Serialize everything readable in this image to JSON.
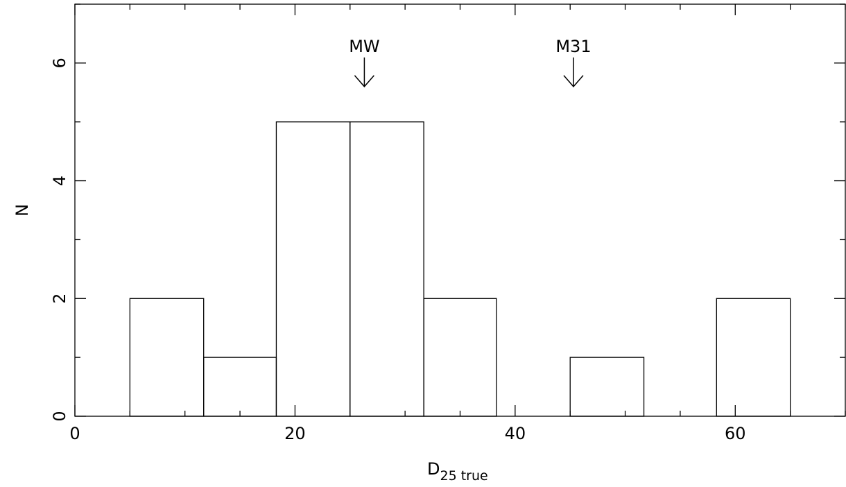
{
  "chart_data": {
    "type": "bar",
    "histogram": true,
    "bins": [
      {
        "from": 5,
        "to": 11.7,
        "count": 2
      },
      {
        "from": 11.7,
        "to": 18.3,
        "count": 1
      },
      {
        "from": 18.3,
        "to": 25,
        "count": 5
      },
      {
        "from": 25,
        "to": 31.7,
        "count": 5
      },
      {
        "from": 31.7,
        "to": 38.3,
        "count": 2
      },
      {
        "from": 38.3,
        "to": 45,
        "count": 0
      },
      {
        "from": 45,
        "to": 51.7,
        "count": 1
      },
      {
        "from": 51.7,
        "to": 58.3,
        "count": 0
      },
      {
        "from": 58.3,
        "to": 65,
        "count": 2
      }
    ],
    "xlabel": "D",
    "xlabel_subscript": "25 true",
    "ylabel": "N",
    "xlim": [
      0,
      70
    ],
    "ylim": [
      0,
      7
    ],
    "xticks": [
      "0",
      "20",
      "40",
      "60"
    ],
    "xtick_values": [
      0,
      20,
      40,
      60
    ],
    "xminor_step": 5,
    "yticks": [
      "0",
      "2",
      "4",
      "6"
    ],
    "ytick_values": [
      0,
      2,
      4,
      6
    ],
    "yminor_step": 1,
    "annotations": [
      {
        "text": "MW",
        "x": 26.3,
        "y": 5.6
      },
      {
        "text": "M31",
        "x": 45.3,
        "y": 5.6
      }
    ],
    "grid": false,
    "legend": "none"
  }
}
